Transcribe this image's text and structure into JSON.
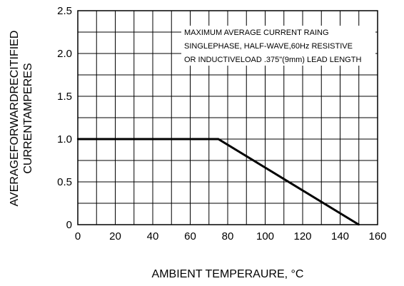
{
  "chart_data": {
    "type": "line",
    "title": "",
    "xlabel": "AMBIENT TEMPERAURE, °C",
    "ylabel_lines": [
      "AVERAGEFORWARDRECITIFIED",
      "CURRENTAMPERES"
    ],
    "xlim": [
      0,
      160
    ],
    "ylim": [
      0,
      2.5
    ],
    "x_ticks": [
      0,
      20,
      40,
      60,
      80,
      100,
      120,
      140,
      160
    ],
    "y_ticks": [
      0,
      0.5,
      1.0,
      1.5,
      2.0,
      2.5
    ],
    "x_tick_labels": [
      "0",
      "20",
      "40",
      "60",
      "80",
      "100",
      "120",
      "140",
      "160"
    ],
    "y_tick_labels": [
      "0",
      "0.5",
      "1.0",
      "1.5",
      "2.0",
      "2.5"
    ],
    "grid": true,
    "series": [
      {
        "x": [
          0,
          75,
          150
        ],
        "y": [
          1.0,
          1.0,
          0
        ]
      }
    ],
    "annotation_lines": [
      "MAXIMUM AVERAGE CURRENT RAING",
      "SINGLEPHASE, HALF-WAVE,60Hz RESISTIVE",
      "OR INDUCTIVELOAD .375\"(9mm) LEAD LENGTH"
    ]
  }
}
